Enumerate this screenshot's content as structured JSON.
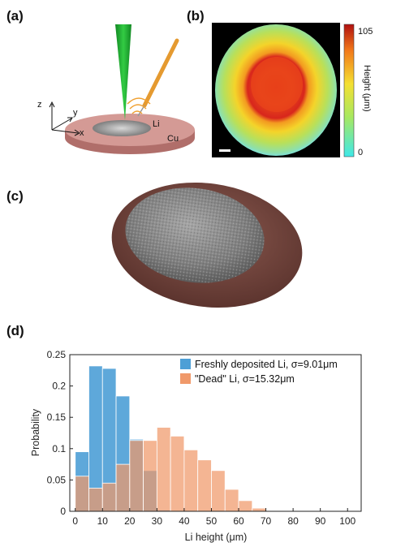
{
  "panels": {
    "a": "(a)",
    "b": "(b)",
    "c": "(c)",
    "d": "(d)"
  },
  "schematic": {
    "axis_z": "z",
    "axis_y": "y",
    "axis_x": "x",
    "label_li": "Li",
    "label_cu": "Cu",
    "colors": {
      "probe": "#22aa33",
      "pipette": "#f0a030",
      "cu_disk": "#c98a86",
      "li_pit": "#9a9a9a"
    }
  },
  "heightmap": {
    "colorbar_max": "105",
    "colorbar_min": "0",
    "colorbar_label": "Height (μm)"
  },
  "render3d": {
    "colors": {
      "substrate": "#7a4a42",
      "deposit": "#8c8c8c"
    }
  },
  "chart_data": {
    "type": "bar",
    "xlabel": "Li height (μm)",
    "ylabel": "Probability",
    "xlim": [
      -2,
      105
    ],
    "ylim": [
      0,
      0.25
    ],
    "bin_width": 5,
    "x_ticks": [
      0,
      10,
      20,
      30,
      40,
      50,
      60,
      70,
      80,
      90,
      100
    ],
    "y_ticks": [
      0,
      0.05,
      0.1,
      0.15,
      0.2,
      0.25
    ],
    "y_tick_labels": [
      "0",
      "0.05",
      "0.1",
      "0.15",
      "0.2",
      "0.25"
    ],
    "legend_position": "top-right",
    "series": [
      {
        "name": "Freshly deposited Li, σ=9.01μm",
        "color": "#4d9fd6",
        "bin_starts": [
          0,
          5,
          10,
          15,
          20,
          25,
          30
        ],
        "values": [
          0.095,
          0.232,
          0.228,
          0.184,
          0.115,
          0.065,
          0.002
        ]
      },
      {
        "name": "\"Dead\" Li, σ=15.32μm",
        "color": "#f0996a",
        "bin_starts": [
          0,
          5,
          10,
          15,
          20,
          25,
          30,
          35,
          40,
          45,
          50,
          55,
          60,
          65,
          70
        ],
        "values": [
          0.056,
          0.037,
          0.045,
          0.075,
          0.113,
          0.113,
          0.134,
          0.12,
          0.098,
          0.082,
          0.065,
          0.035,
          0.017,
          0.005,
          0.001
        ]
      }
    ]
  }
}
